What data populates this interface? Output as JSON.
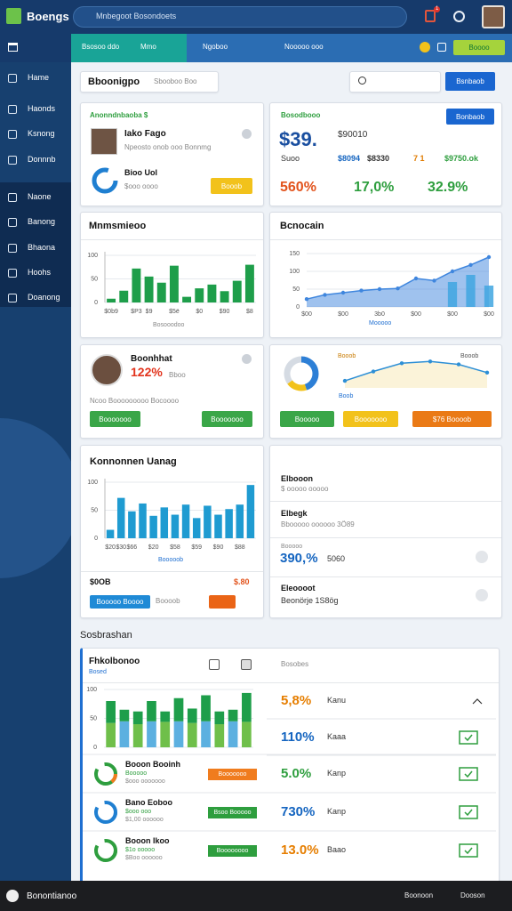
{
  "topbar": {
    "logo": "Boengs",
    "search": "Mnbegoot Bosondoets",
    "notifications": "1"
  },
  "tabs": {
    "items": [
      "Bsosoo ddo",
      "Mmo",
      "Ngoboo",
      "Nooooo ooo"
    ],
    "button": "Boooo"
  },
  "sidebar": {
    "items": [
      "Hame",
      "Haonds",
      "Ksnong",
      "Donnnb"
    ],
    "section": [
      "Naone",
      "Banong",
      "Bhaona",
      "Hoohs",
      "Doanong"
    ]
  },
  "header": {
    "title": "Bboonigpo",
    "filter": "Sbooboo Boo",
    "button": "Bsnbaob"
  },
  "profile": {
    "title": "Anonndnbaoba $",
    "name": "Iako Fago",
    "subtitle": "Npeosto onob ooo Bonnmg",
    "stat_title": "Bioo Uol",
    "stat_subtitle": "$ooo oooo",
    "button": "Booob"
  },
  "summary": {
    "title": "Bosodbooo",
    "button": "Bonbaob",
    "big": "$39.",
    "big_sub": "$90010",
    "row": [
      "Suoo",
      "$8094",
      "$8330",
      "7 1",
      "$9750.ok"
    ],
    "percents": [
      "560%",
      "17,0%",
      "32.9%"
    ]
  },
  "revenue": {
    "title": "Mnmsmieoo",
    "caption": "Bosooodoo",
    "chart": {
      "type": "bar",
      "categories": [
        "$0b9",
        null,
        "$P3",
        "$9",
        null,
        "$5ë",
        null,
        "$0",
        null,
        "$90",
        null,
        "$8"
      ],
      "values": [
        8,
        25,
        72,
        55,
        42,
        78,
        12,
        30,
        38,
        24,
        46,
        80
      ],
      "ylim": [
        0,
        100
      ],
      "yticks": [
        0,
        50,
        100
      ],
      "color": "#1e9e4a"
    }
  },
  "trend": {
    "title": "Bcnocain",
    "caption": "Mooooo",
    "chart": {
      "type": "area",
      "categories": [
        "$00",
        null,
        "$00",
        null,
        "3b0",
        null,
        "$00",
        null,
        "$00",
        null,
        "$00"
      ],
      "values": [
        22,
        34,
        40,
        46,
        50,
        52,
        80,
        74,
        100,
        118,
        140
      ],
      "bar_values": [
        null,
        null,
        null,
        null,
        null,
        null,
        null,
        null,
        70,
        90,
        60
      ],
      "ylim": [
        0,
        150
      ],
      "yticks": [
        0,
        50,
        100,
        150
      ],
      "color": "#3f86de",
      "bar_color": "#3fa6e0"
    }
  },
  "person": {
    "name": "Boonhhat",
    "percent": "122%",
    "percent_note": "Bboo",
    "note": "Ncoo Booooooooo Bocoooo",
    "buttons": [
      "Booooooo",
      "Booooooo"
    ]
  },
  "mini": {
    "labels": [
      "Booob",
      "Booob"
    ],
    "axis_label": "Boob",
    "buttons": [
      "Booooo",
      "Booooooo",
      "$76 Boooob"
    ],
    "donut": {
      "type": "donut",
      "values": [
        45,
        20,
        35
      ],
      "colors": [
        "#2d7fd6",
        "#f2c21b",
        "#d5dbe3"
      ]
    },
    "line": {
      "type": "area",
      "values": [
        12,
        28,
        42,
        45,
        40,
        26
      ],
      "ylim": [
        0,
        50
      ],
      "color": "#2d8fd6",
      "fill_color": "#fbf3d9"
    }
  },
  "sales": {
    "title": "Konnonnen Uanag",
    "caption": "Booooob",
    "total": "$0OB",
    "total_value": "$.80",
    "buttons": [
      "Booooo Boooo",
      "Boooob"
    ],
    "chart": {
      "type": "bar",
      "categories": [
        "$20",
        "$30",
        "$66",
        null,
        "$20",
        null,
        "$58",
        null,
        "$59",
        null,
        "$90",
        null,
        "$88",
        null
      ],
      "values": [
        15,
        72,
        48,
        62,
        40,
        55,
        42,
        60,
        36,
        58,
        42,
        52,
        60,
        95
      ],
      "ylim": [
        0,
        100
      ],
      "yticks": [
        0,
        50,
        100
      ],
      "color": "#1f9bd1"
    }
  },
  "list": {
    "items": [
      {
        "title": "Elbooon",
        "subtitle": "$ ooooo ooooo"
      },
      {
        "title": "Elbegk",
        "subtitle": "Bbooooo oooooo 3Ö89"
      },
      {
        "subtitle": "Booooo",
        "value": "390,%",
        "note": "5060"
      },
      {
        "title": "Eleoooot",
        "subtitle": "Beonörje 1S8ög"
      }
    ]
  },
  "section_title": "Sosbrashan",
  "table": {
    "title": "Fhkolbonoo",
    "subtitle": "Bosed",
    "column": "Bosobes",
    "chart": {
      "type": "stacked_bar",
      "series": [
        {
          "color": "#6fbf4a",
          "values": [
            42,
            45,
            40,
            45,
            44,
            45,
            42,
            45,
            40,
            45,
            44
          ]
        },
        {
          "color": "#1e9e4a",
          "values": [
            38,
            20,
            22,
            35,
            18,
            40,
            25,
            45,
            22,
            20,
            50
          ]
        }
      ],
      "ylim": [
        0,
        100
      ],
      "yticks": [
        0,
        50,
        100
      ]
    },
    "top_rows": [
      {
        "percent": "5,8%",
        "text": "Kanu"
      },
      {
        "percent": "110%",
        "text": "Kaaa"
      }
    ],
    "rows": [
      {
        "name": "Booon Booinh",
        "subtitle": "Booooo",
        "detail": "$ooo ooooooo",
        "tag": "Booooooo",
        "percent": "5.0%",
        "text": "Kanp"
      },
      {
        "name": "Bano Eoboo",
        "subtitle": "$ooo ooo",
        "detail": "$1,00 oooooo",
        "tag": "Bsoo Booooo",
        "percent": "730%",
        "text": "Kanp"
      },
      {
        "name": "Booon Ikoo",
        "subtitle": "$1o ooooo",
        "detail": "$Boo oooooo",
        "tag": "Boooooooo",
        "percent": "13.0%",
        "text": "Baao"
      }
    ]
  },
  "footer": {
    "title": "Bonontianoo",
    "items": [
      "Boonoon",
      "Dooson"
    ]
  }
}
